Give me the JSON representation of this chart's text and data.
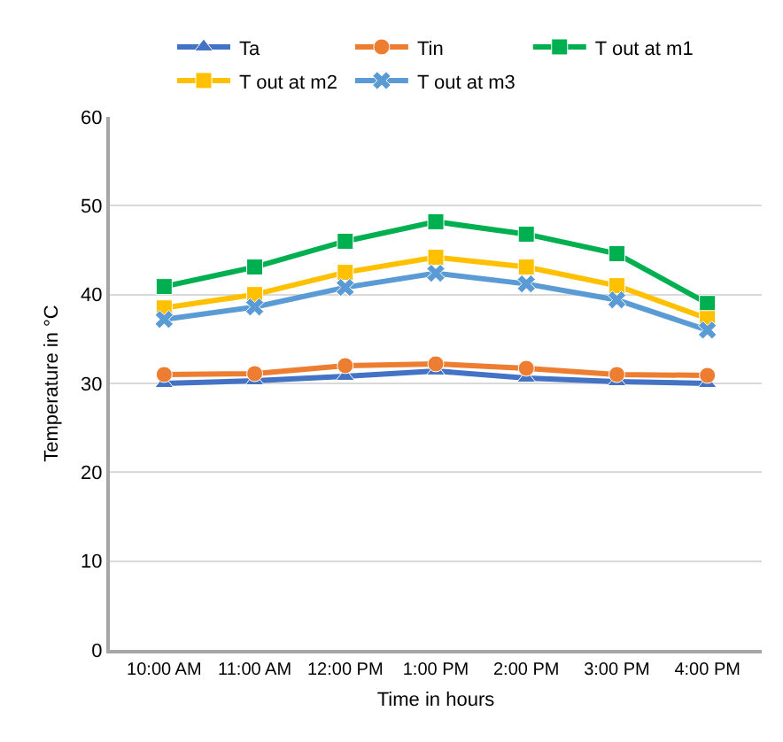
{
  "chart_data": {
    "type": "line",
    "xlabel": "Time in hours",
    "ylabel": "Temperature in °C",
    "categories": [
      "10:00 AM",
      "11:00 AM",
      "12:00 PM",
      "1:00 PM",
      "2:00 PM",
      "3:00 PM",
      "4:00 PM"
    ],
    "series": [
      {
        "name": "Ta",
        "color": "#4472c4",
        "marker": "triangle",
        "values": [
          30.0,
          30.3,
          30.8,
          31.4,
          30.6,
          30.2,
          30.0
        ]
      },
      {
        "name": "Tin",
        "color": "#ed7d31",
        "marker": "circle",
        "values": [
          31.0,
          31.1,
          32.0,
          32.2,
          31.7,
          31.0,
          30.9
        ]
      },
      {
        "name": "T out at m1",
        "color": "#00b050",
        "marker": "square",
        "values": [
          40.9,
          43.1,
          46.0,
          48.2,
          46.8,
          44.6,
          39.0
        ]
      },
      {
        "name": "T out at m2",
        "color": "#ffc000",
        "marker": "square",
        "values": [
          38.5,
          40.0,
          42.5,
          44.2,
          43.1,
          41.0,
          37.3
        ]
      },
      {
        "name": "T out at m3",
        "color": "#5b9bd5",
        "marker": "cross",
        "values": [
          37.2,
          38.6,
          40.8,
          42.4,
          41.2,
          39.4,
          36.0
        ]
      }
    ],
    "ylim": [
      0,
      60
    ],
    "yticks": [
      0,
      10,
      20,
      30,
      40,
      50,
      60
    ],
    "grid": "y",
    "legend": "top"
  }
}
